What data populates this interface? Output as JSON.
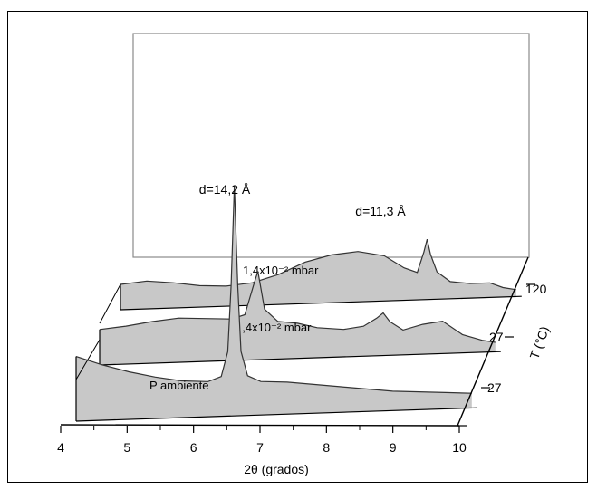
{
  "chart_data": {
    "type": "area",
    "title": "",
    "xlabel": "2θ (grados)",
    "ylabel": "T (°C)",
    "xlim": [
      4,
      10
    ],
    "x_ticks": [
      "4",
      "5",
      "6",
      "7",
      "8",
      "9",
      "10"
    ],
    "grid": false,
    "annotations": [
      {
        "text": "d=14,2 Å",
        "x": 6.4
      },
      {
        "text": "d=11,3 Å",
        "x": 8.7
      }
    ],
    "series": [
      {
        "label": "P ambiente",
        "T_label": "27",
        "x": [
          4.0,
          4.4,
          4.8,
          5.2,
          5.6,
          6.0,
          6.2,
          6.3,
          6.35,
          6.4,
          6.45,
          6.5,
          6.6,
          6.8,
          7.2,
          7.6,
          8.0,
          8.4,
          8.8,
          9.2,
          9.6,
          10.0
        ],
        "y": [
          0.42,
          0.36,
          0.31,
          0.27,
          0.24,
          0.23,
          0.26,
          0.42,
          0.85,
          1.5,
          0.85,
          0.42,
          0.26,
          0.22,
          0.21,
          0.19,
          0.17,
          0.15,
          0.13,
          0.12,
          0.11,
          0.1
        ]
      },
      {
        "label": "1,4x10⁻² mbar",
        "T_label": "27",
        "x": [
          4.0,
          4.4,
          4.8,
          5.2,
          5.6,
          6.0,
          6.2,
          6.35,
          6.4,
          6.5,
          6.7,
          7.0,
          7.3,
          7.7,
          8.0,
          8.2,
          8.3,
          8.4,
          8.6,
          8.9,
          9.2,
          9.5,
          9.8,
          10.0
        ],
        "y": [
          0.28,
          0.3,
          0.33,
          0.35,
          0.34,
          0.33,
          0.36,
          0.62,
          0.7,
          0.4,
          0.3,
          0.28,
          0.24,
          0.22,
          0.24,
          0.3,
          0.34,
          0.27,
          0.2,
          0.24,
          0.26,
          0.15,
          0.1,
          0.08
        ]
      },
      {
        "label": "1,4x10⁻² mbar",
        "T_label": "120",
        "x": [
          4.0,
          4.4,
          4.8,
          5.2,
          5.6,
          6.0,
          6.4,
          6.8,
          7.2,
          7.6,
          8.0,
          8.3,
          8.5,
          8.6,
          8.65,
          8.7,
          8.8,
          9.0,
          9.3,
          9.6,
          9.8,
          10.0
        ],
        "y": [
          0.2,
          0.22,
          0.2,
          0.17,
          0.16,
          0.18,
          0.24,
          0.33,
          0.38,
          0.4,
          0.36,
          0.26,
          0.22,
          0.38,
          0.48,
          0.36,
          0.22,
          0.14,
          0.12,
          0.12,
          0.08,
          0.06
        ]
      }
    ]
  }
}
